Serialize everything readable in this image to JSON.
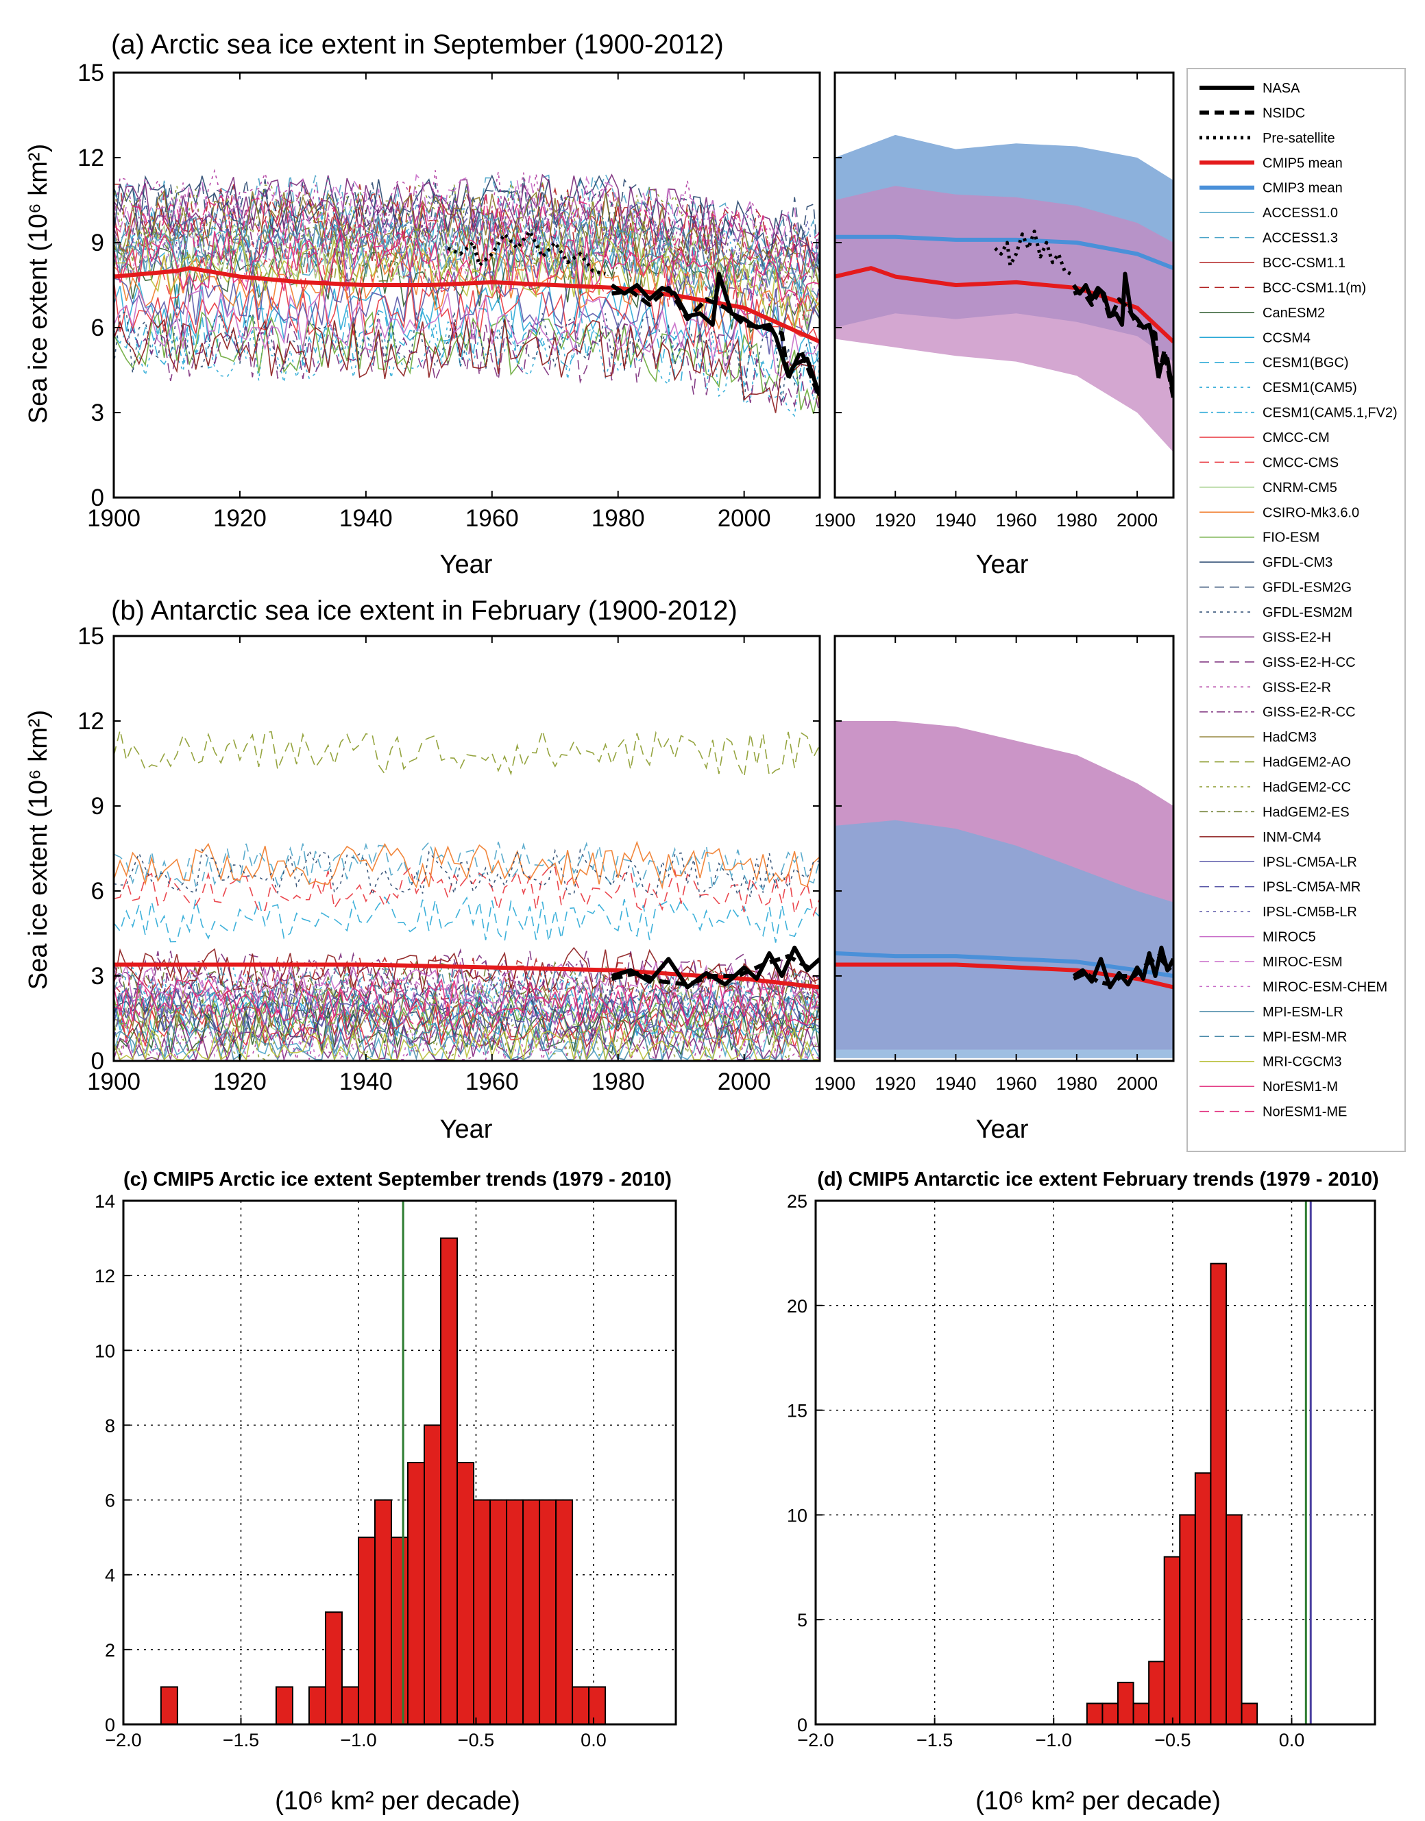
{
  "colors": {
    "cmip5_mean": "#e41a1c",
    "cmip3_mean": "#4a90d9",
    "obs": "#000000",
    "hist_bar": "#e0201c",
    "obs_trend_line": "#2e7d32",
    "antarctic_obs_line2": "#4a3fa0",
    "cmip3_band": "#7fa9d8",
    "cmip5_band": "#c58ac1",
    "overlap_band": "#a07ab5"
  },
  "legend": {
    "entries": [
      {
        "label": "NASA",
        "color": "#000000",
        "style": "solid",
        "width": 6
      },
      {
        "label": "NSIDC",
        "color": "#000000",
        "style": "dash",
        "width": 6
      },
      {
        "label": "Pre-satellite",
        "color": "#000000",
        "style": "dot",
        "width": 5
      },
      {
        "label": "CMIP5 mean",
        "color": "#e41a1c",
        "style": "solid",
        "width": 6
      },
      {
        "label": "CMIP3 mean",
        "color": "#4a90d9",
        "style": "solid",
        "width": 6
      },
      {
        "label": "ACCESS1.0",
        "color": "#4aa3c8",
        "style": "solid",
        "width": 1.5
      },
      {
        "label": "ACCESS1.3",
        "color": "#4aa3c8",
        "style": "dash",
        "width": 1.5
      },
      {
        "label": "BCC-CSM1.1",
        "color": "#b22222",
        "style": "solid",
        "width": 1.5
      },
      {
        "label": "BCC-CSM1.1(m)",
        "color": "#b22222",
        "style": "dash",
        "width": 1.5
      },
      {
        "label": "CanESM2",
        "color": "#2f5d2f",
        "style": "solid",
        "width": 1.5
      },
      {
        "label": "CCSM4",
        "color": "#29a8d6",
        "style": "solid",
        "width": 1.5
      },
      {
        "label": "CESM1(BGC)",
        "color": "#29a8d6",
        "style": "dash",
        "width": 1.5
      },
      {
        "label": "CESM1(CAM5)",
        "color": "#29a8d6",
        "style": "dot",
        "width": 1.5
      },
      {
        "label": "CESM1(CAM5.1,FV2)",
        "color": "#29a8d6",
        "style": "dashdot",
        "width": 1.5
      },
      {
        "label": "CMCC-CM",
        "color": "#e8343c",
        "style": "solid",
        "width": 1.5
      },
      {
        "label": "CMCC-CMS",
        "color": "#e8343c",
        "style": "dash",
        "width": 1.5
      },
      {
        "label": "CNRM-CM5",
        "color": "#a8d08d",
        "style": "solid",
        "width": 1.5
      },
      {
        "label": "CSIRO-Mk3.6.0",
        "color": "#f07a28",
        "style": "solid",
        "width": 1.5
      },
      {
        "label": "FIO-ESM",
        "color": "#6aaa3a",
        "style": "solid",
        "width": 1.5
      },
      {
        "label": "GFDL-CM3",
        "color": "#27466e",
        "style": "solid",
        "width": 1.5
      },
      {
        "label": "GFDL-ESM2G",
        "color": "#27466e",
        "style": "dash",
        "width": 1.5
      },
      {
        "label": "GFDL-ESM2M",
        "color": "#27466e",
        "style": "dot",
        "width": 1.5
      },
      {
        "label": "GISS-E2-H",
        "color": "#7a2a7a",
        "style": "solid",
        "width": 1.5
      },
      {
        "label": "GISS-E2-H-CC",
        "color": "#7a2a7a",
        "style": "dash",
        "width": 1.5
      },
      {
        "label": "GISS-E2-R",
        "color": "#b03aa0",
        "style": "dot",
        "width": 1.5
      },
      {
        "label": "GISS-E2-R-CC",
        "color": "#7a2a7a",
        "style": "dashdot",
        "width": 1.5
      },
      {
        "label": "HadCM3",
        "color": "#8a7a2a",
        "style": "solid",
        "width": 1.5
      },
      {
        "label": "HadGEM2-AO",
        "color": "#8a9a2a",
        "style": "dash",
        "width": 1.5
      },
      {
        "label": "HadGEM2-CC",
        "color": "#8a9a2a",
        "style": "dot",
        "width": 1.5
      },
      {
        "label": "HadGEM2-ES",
        "color": "#6a7a2a",
        "style": "dashdot",
        "width": 1.5
      },
      {
        "label": "INM-CM4",
        "color": "#8b1a1a",
        "style": "solid",
        "width": 1.5
      },
      {
        "label": "IPSL-CM5A-LR",
        "color": "#5a58a8",
        "style": "solid",
        "width": 1.5
      },
      {
        "label": "IPSL-CM5A-MR",
        "color": "#5a58a8",
        "style": "dash",
        "width": 1.5
      },
      {
        "label": "IPSL-CM5B-LR",
        "color": "#5a58a8",
        "style": "dot",
        "width": 1.5
      },
      {
        "label": "MIROC5",
        "color": "#c86cc8",
        "style": "solid",
        "width": 1.5
      },
      {
        "label": "MIROC-ESM",
        "color": "#c86cc8",
        "style": "dash",
        "width": 1.5
      },
      {
        "label": "MIROC-ESM-CHEM",
        "color": "#c86cc8",
        "style": "dot",
        "width": 1.5
      },
      {
        "label": "MPI-ESM-LR",
        "color": "#4a8aa8",
        "style": "solid",
        "width": 1.5
      },
      {
        "label": "MPI-ESM-MR",
        "color": "#4a8aa8",
        "style": "dash",
        "width": 1.5
      },
      {
        "label": "MRI-CGCM3",
        "color": "#b8c03a",
        "style": "solid",
        "width": 1.5
      },
      {
        "label": "NorESM1-M",
        "color": "#e0287a",
        "style": "solid",
        "width": 1.5
      },
      {
        "label": "NorESM1-ME",
        "color": "#e0287a",
        "style": "dash",
        "width": 1.5
      }
    ]
  },
  "chart_data": [
    {
      "id": "a",
      "type": "line",
      "title": "(a) Arctic sea ice extent in September (1900-2012)",
      "xlabel": "Year",
      "ylabel": "Sea ice extent (10⁶ km²)",
      "xlim": [
        1900,
        2012
      ],
      "ylim": [
        0,
        15
      ],
      "xticks": [
        1900,
        1920,
        1940,
        1960,
        1980,
        2000
      ],
      "yticks": [
        0,
        3,
        6,
        9,
        12,
        15
      ],
      "series": [
        {
          "name": "CMIP5 mean",
          "x": [
            1900,
            1910,
            1912,
            1920,
            1930,
            1940,
            1950,
            1960,
            1970,
            1980,
            1990,
            2000,
            2005,
            2012
          ],
          "y": [
            7.8,
            8.0,
            8.1,
            7.8,
            7.6,
            7.5,
            7.5,
            7.6,
            7.5,
            7.4,
            7.1,
            6.7,
            6.2,
            5.5
          ]
        },
        {
          "name": "Pre-satellite",
          "x": [
            1953,
            1955,
            1957,
            1958,
            1960,
            1962,
            1964,
            1966,
            1968,
            1970,
            1972,
            1974,
            1976,
            1978
          ],
          "y": [
            8.8,
            8.6,
            9.0,
            8.2,
            8.6,
            9.3,
            8.8,
            9.4,
            8.5,
            9.0,
            8.3,
            8.6,
            8.0,
            7.9
          ]
        },
        {
          "name": "NASA",
          "x": [
            1979,
            1981,
            1983,
            1985,
            1987,
            1989,
            1991,
            1993,
            1995,
            1996,
            1998,
            2000,
            2002,
            2004,
            2005,
            2007,
            2008,
            2010,
            2012
          ],
          "y": [
            7.5,
            7.2,
            7.5,
            7.0,
            7.4,
            7.2,
            6.4,
            6.5,
            6.1,
            7.9,
            6.5,
            6.3,
            6.0,
            6.1,
            5.7,
            4.3,
            4.7,
            4.9,
            3.6
          ]
        },
        {
          "name": "NSIDC",
          "x": [
            1979,
            1982,
            1985,
            1988,
            1991,
            1994,
            1997,
            2000,
            2003,
            2006,
            2007,
            2009,
            2012
          ],
          "y": [
            7.2,
            7.3,
            6.8,
            7.4,
            6.3,
            7.0,
            6.7,
            6.1,
            6.0,
            5.8,
            4.2,
            5.2,
            3.5
          ]
        }
      ],
      "right_panel": {
        "xlim": [
          1900,
          2012
        ],
        "ylim": [
          0,
          15
        ],
        "xticks": [
          1900,
          1920,
          1940,
          1960,
          1980,
          2000
        ],
        "xlabel": "Year",
        "series": [
          {
            "name": "CMIP3 mean",
            "x": [
              1900,
              1920,
              1940,
              1960,
              1980,
              2000,
              2012
            ],
            "y": [
              9.2,
              9.2,
              9.1,
              9.1,
              9.0,
              8.6,
              8.1
            ]
          },
          {
            "name": "CMIP5 mean",
            "x": [
              1900,
              1912,
              1920,
              1940,
              1960,
              1980,
              2000,
              2012
            ],
            "y": [
              7.8,
              8.1,
              7.8,
              7.5,
              7.6,
              7.4,
              6.7,
              5.5
            ]
          }
        ],
        "bands": [
          {
            "name": "CMIP3 range",
            "x": [
              1900,
              1920,
              1940,
              1960,
              1980,
              2000,
              2012
            ],
            "upper": [
              12.0,
              12.8,
              12.3,
              12.5,
              12.4,
              12.0,
              11.2
            ],
            "lower": [
              6.0,
              6.5,
              6.3,
              6.5,
              6.2,
              5.7,
              4.8
            ]
          },
          {
            "name": "CMIP5 range",
            "x": [
              1900,
              1920,
              1940,
              1960,
              1980,
              2000,
              2012
            ],
            "upper": [
              10.5,
              11.0,
              10.7,
              10.6,
              10.3,
              9.7,
              9.0
            ],
            "lower": [
              5.6,
              5.3,
              5.0,
              4.8,
              4.3,
              3.0,
              1.6
            ]
          }
        ]
      }
    },
    {
      "id": "b",
      "type": "line",
      "title": "(b) Antarctic sea ice extent in February (1900-2012)",
      "xlabel": "Year",
      "ylabel": "Sea ice extent (10⁶ km²)",
      "xlim": [
        1900,
        2012
      ],
      "ylim": [
        0,
        15
      ],
      "xticks": [
        1900,
        1920,
        1940,
        1960,
        1980,
        2000
      ],
      "yticks": [
        0,
        3,
        6,
        9,
        12,
        15
      ],
      "series": [
        {
          "name": "CMIP5 mean",
          "x": [
            1900,
            1920,
            1940,
            1960,
            1980,
            2000,
            2012
          ],
          "y": [
            3.4,
            3.4,
            3.4,
            3.3,
            3.2,
            2.9,
            2.6
          ]
        },
        {
          "name": "NASA",
          "x": [
            1979,
            1982,
            1985,
            1988,
            1991,
            1994,
            1997,
            2000,
            2002,
            2004,
            2006,
            2008,
            2010,
            2012
          ],
          "y": [
            3.0,
            3.2,
            2.8,
            3.6,
            2.6,
            3.1,
            2.7,
            3.3,
            2.9,
            3.8,
            3.0,
            4.0,
            3.2,
            3.6
          ]
        },
        {
          "name": "NSIDC",
          "x": [
            1979,
            1983,
            1987,
            1991,
            1995,
            1999,
            2003,
            2007,
            2011
          ],
          "y": [
            2.9,
            3.1,
            2.8,
            2.7,
            3.0,
            3.0,
            3.4,
            3.7,
            3.2
          ]
        }
      ],
      "right_panel": {
        "xlim": [
          1900,
          2012
        ],
        "ylim": [
          0,
          15
        ],
        "xticks": [
          1900,
          1920,
          1940,
          1960,
          1980,
          2000
        ],
        "xlabel": "Year",
        "series": [
          {
            "name": "CMIP3 mean",
            "x": [
              1900,
              1920,
              1940,
              1960,
              1980,
              2000,
              2012
            ],
            "y": [
              3.8,
              3.7,
              3.7,
              3.6,
              3.5,
              3.2,
              3.0
            ]
          },
          {
            "name": "CMIP5 mean",
            "x": [
              1900,
              1920,
              1940,
              1960,
              1980,
              2000,
              2012
            ],
            "y": [
              3.4,
              3.4,
              3.4,
              3.3,
              3.2,
              2.9,
              2.6
            ]
          }
        ],
        "bands": [
          {
            "name": "CMIP5 range",
            "x": [
              1900,
              1920,
              1940,
              1960,
              1980,
              2000,
              2012
            ],
            "upper": [
              12.0,
              12.0,
              11.8,
              11.3,
              10.8,
              9.8,
              9.0
            ],
            "lower": [
              0.4,
              0.4,
              0.4,
              0.4,
              0.4,
              0.4,
              0.4
            ]
          },
          {
            "name": "CMIP3 range",
            "x": [
              1900,
              1920,
              1940,
              1960,
              1980,
              2000,
              2012
            ],
            "upper": [
              8.3,
              8.5,
              8.2,
              7.6,
              6.8,
              6.0,
              5.6
            ],
            "lower": [
              0.1,
              0.1,
              0.1,
              0.1,
              0.1,
              0.1,
              0.1
            ]
          }
        ]
      }
    },
    {
      "id": "c",
      "type": "bar",
      "title": "(c) CMIP5 Arctic ice extent September trends (1979 - 2010)",
      "xlabel": "(10⁶ km² per decade)",
      "ylabel": "",
      "xlim": [
        -2.0,
        0.35
      ],
      "ylim": [
        0,
        14
      ],
      "xticks": [
        -2.0,
        -1.5,
        -1.0,
        -0.5,
        0.0
      ],
      "yticks": [
        0,
        2,
        4,
        6,
        8,
        10,
        12,
        14
      ],
      "bin_width": 0.07,
      "bin_lefts": [
        -1.84,
        -1.35,
        -1.28,
        -1.21,
        -1.14,
        -1.07,
        -1.0,
        -0.93,
        -0.86,
        -0.79,
        -0.72,
        -0.65,
        -0.58,
        -0.51,
        -0.44,
        -0.37,
        -0.3,
        -0.23,
        -0.16,
        -0.09,
        -0.02,
        0.05
      ],
      "values": [
        1,
        1,
        0,
        1,
        3,
        1,
        5,
        6,
        5,
        7,
        8,
        13,
        7,
        6,
        6,
        6,
        6,
        6,
        6,
        1,
        1,
        0
      ],
      "obs_lines": [
        -0.81
      ]
    },
    {
      "id": "d",
      "type": "bar",
      "title": "(d) CMIP5 Antarctic ice extent February trends (1979 - 2010)",
      "xlabel": "(10⁶ km² per decade)",
      "ylabel": "",
      "xlim": [
        -2.0,
        0.35
      ],
      "ylim": [
        0,
        25
      ],
      "xticks": [
        -2.0,
        -1.5,
        -1.0,
        -0.5,
        0.0
      ],
      "yticks": [
        0,
        5,
        10,
        15,
        20,
        25
      ],
      "bin_width": 0.065,
      "bin_lefts": [
        -0.86,
        -0.795,
        -0.73,
        -0.665,
        -0.6,
        -0.535,
        -0.47,
        -0.405,
        -0.34,
        -0.275,
        -0.21,
        -0.145,
        -0.08,
        -0.015,
        0.05,
        0.115
      ],
      "values": [
        1,
        1,
        2,
        1,
        3,
        8,
        10,
        12,
        22,
        10,
        1,
        0,
        0,
        0,
        0,
        0
      ],
      "obs_lines": [
        0.06,
        0.08
      ]
    }
  ]
}
